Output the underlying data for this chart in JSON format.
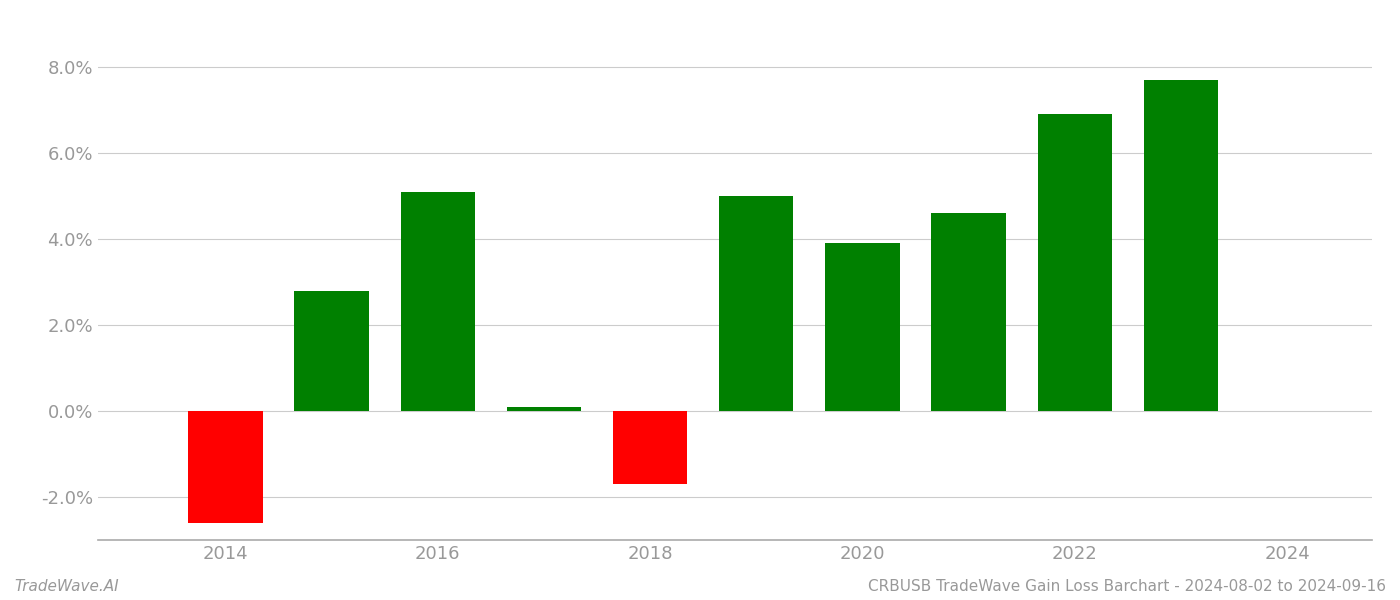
{
  "years": [
    2014,
    2015,
    2016,
    2017,
    2018,
    2019,
    2020,
    2021,
    2022,
    2023
  ],
  "values": [
    -0.026,
    0.028,
    0.051,
    0.001,
    -0.017,
    0.05,
    0.039,
    0.046,
    0.069,
    0.077
  ],
  "colors": [
    "#ff0000",
    "#008000",
    "#008000",
    "#008000",
    "#ff0000",
    "#008000",
    "#008000",
    "#008000",
    "#008000",
    "#008000"
  ],
  "bar_width": 0.7,
  "ylim": [
    -0.03,
    0.09
  ],
  "yticks": [
    -0.02,
    0.0,
    0.02,
    0.04,
    0.06,
    0.08
  ],
  "xlim": [
    2012.8,
    2024.8
  ],
  "xticks": [
    2014,
    2016,
    2018,
    2020,
    2022,
    2024
  ],
  "xlabel": "",
  "ylabel": "",
  "grid_color": "#cccccc",
  "background_color": "#ffffff",
  "footer_left": "TradeWave.AI",
  "footer_right": "CRBUSB TradeWave Gain Loss Barchart - 2024-08-02 to 2024-09-16",
  "footer_fontsize": 11,
  "tick_fontsize": 13,
  "tick_color": "#999999",
  "spine_color": "#aaaaaa"
}
